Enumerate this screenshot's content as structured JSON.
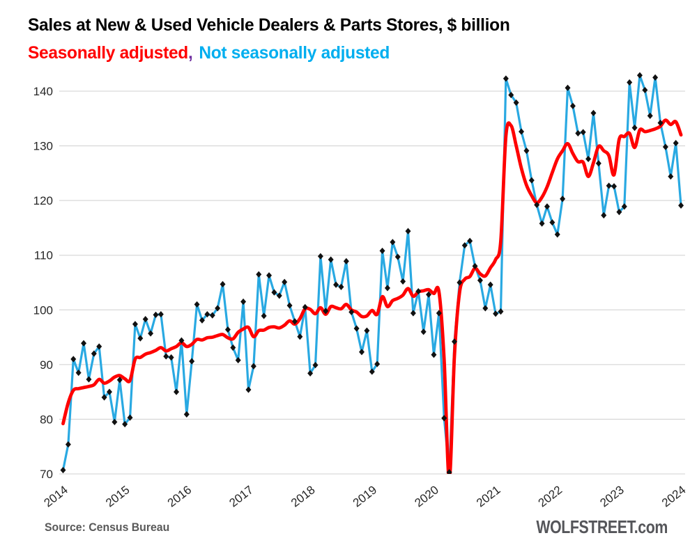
{
  "title": "Sales at New & Used Vehicle Dealers & Parts Stores, $ billion",
  "subtitle": {
    "sa_label": "Seasonally adjusted",
    "separator": ",",
    "nsa_label": "Not seasonally adjusted"
  },
  "footer": {
    "source": "Source: Census Bureau",
    "brand": "WOLFSTREET",
    "brand_suffix": ".com"
  },
  "colors": {
    "sa_line": "#FF0000",
    "nsa_line": "#29A9E2",
    "subtitle_sa": "#FF0000",
    "subtitle_nsa": "#00AEEF",
    "subtitle_separator": "#7030A0",
    "grid": "#D9D9D9",
    "marker": "#111111",
    "axis_text": "#262626",
    "title_text": "#000000",
    "footer_text": "#595959"
  },
  "chart_data": {
    "type": "line",
    "title": "Sales at New & Used Vehicle Dealers & Parts Stores, $ billion",
    "xlabel": "",
    "ylabel": "$ billion",
    "x_start": "2014-01",
    "x_end": "2024-01",
    "x_frequency": "monthly",
    "x_tick_years": [
      2014,
      2015,
      2016,
      2017,
      2018,
      2019,
      2020,
      2021,
      2022,
      2023,
      2024
    ],
    "ylim": [
      70,
      140
    ],
    "y_ticks": [
      70,
      80,
      90,
      100,
      110,
      120,
      130,
      140
    ],
    "grid": "horizontal-only",
    "legend_position": "as-subtitle",
    "series": [
      {
        "name": "Not seasonally adjusted",
        "color": "#29A9E2",
        "marker": "diamond",
        "marker_color": "#111111",
        "smooth": false,
        "values": [
          70.7,
          75.4,
          91.0,
          88.5,
          93.9,
          87.3,
          92.0,
          93.3,
          84.0,
          85.0,
          79.5,
          87.2,
          79.1,
          80.3,
          97.4,
          94.8,
          98.3,
          95.7,
          99.1,
          99.2,
          91.5,
          91.3,
          85.0,
          94.4,
          80.9,
          90.6,
          101.0,
          98.1,
          99.2,
          99.0,
          100.3,
          104.7,
          96.4,
          93.1,
          90.8,
          101.5,
          85.4,
          89.7,
          106.5,
          98.9,
          106.3,
          103.2,
          102.6,
          105.1,
          100.8,
          97.9,
          95.1,
          100.5,
          88.4,
          89.9,
          109.8,
          99.8,
          109.2,
          104.6,
          104.2,
          108.9,
          99.6,
          96.6,
          92.3,
          96.2,
          88.7,
          90.1,
          110.8,
          104.0,
          112.4,
          109.7,
          105.2,
          114.4,
          99.4,
          103.4,
          96.0,
          102.8,
          91.8,
          99.4,
          80.2,
          70.3,
          94.2,
          105.0,
          111.8,
          112.6,
          108.0,
          105.4,
          100.3,
          104.6,
          99.3,
          99.7,
          142.3,
          139.3,
          137.9,
          132.6,
          129.1,
          123.7,
          119.2,
          115.8,
          118.9,
          116.0,
          113.8,
          120.3,
          140.6,
          137.3,
          132.3,
          132.5,
          127.6,
          136.0,
          126.8,
          117.3,
          122.7,
          122.6,
          117.9,
          118.9,
          141.6,
          133.3,
          142.9,
          140.2,
          135.5,
          142.5,
          134.2,
          129.8,
          124.4,
          130.5,
          119.1
        ]
      },
      {
        "name": "Seasonally adjusted",
        "color": "#FF0000",
        "marker": "none",
        "smooth": true,
        "values": [
          79.2,
          83.0,
          85.3,
          85.6,
          85.8,
          86.0,
          86.3,
          87.3,
          86.6,
          87.0,
          87.7,
          88.0,
          87.4,
          87.1,
          91.0,
          91.3,
          91.9,
          92.2,
          92.6,
          93.1,
          92.5,
          92.9,
          93.3,
          94.0,
          93.3,
          93.7,
          94.6,
          94.5,
          94.9,
          95.0,
          95.3,
          95.5,
          94.9,
          94.7,
          95.9,
          96.5,
          96.8,
          95.1,
          96.2,
          96.3,
          96.8,
          96.9,
          96.7,
          97.2,
          98.0,
          97.4,
          98.4,
          100.2,
          100.1,
          99.3,
          100.4,
          99.2,
          100.6,
          100.4,
          100.2,
          101.0,
          100.0,
          99.6,
          98.8,
          98.9,
          99.9,
          99.2,
          102.4,
          100.6,
          101.7,
          102.1,
          102.7,
          103.9,
          102.5,
          103.3,
          103.5,
          103.7,
          103.0,
          103.3,
          91.0,
          69.0,
          91.5,
          103.2,
          105.6,
          106.1,
          107.6,
          106.6,
          106.2,
          107.7,
          109.2,
          112.6,
          131.8,
          133.7,
          130.0,
          125.9,
          122.8,
          120.9,
          119.6,
          120.6,
          122.5,
          125.1,
          127.6,
          129.1,
          130.4,
          128.6,
          127.1,
          127.0,
          124.4,
          126.9,
          129.9,
          129.1,
          128.2,
          124.7,
          131.2,
          131.7,
          132.3,
          129.7,
          132.9,
          132.6,
          132.8,
          133.1,
          133.6,
          134.7,
          133.9,
          134.4,
          132.0
        ]
      }
    ]
  }
}
